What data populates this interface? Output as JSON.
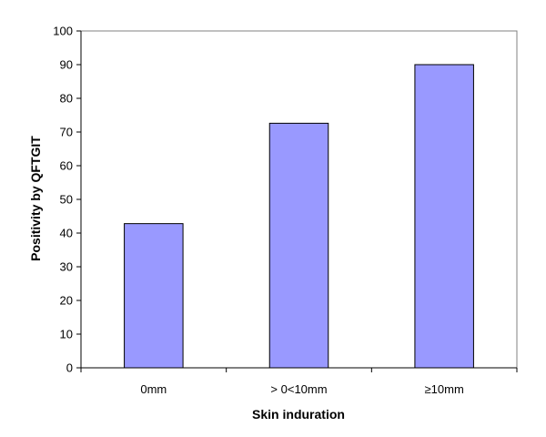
{
  "chart_data": {
    "type": "bar",
    "categories": [
      "0mm",
      "> 0<10mm",
      "≥10mm"
    ],
    "values": [
      42.8,
      72.6,
      90.0
    ],
    "xlabel": "Skin induration",
    "ylabel": "Positivity by QFTGIT",
    "ylim": [
      0,
      100
    ],
    "yticks": [
      0,
      10,
      20,
      30,
      40,
      50,
      60,
      70,
      80,
      90,
      100
    ],
    "grid": false,
    "legend": "none",
    "bar_color": "#9999ff",
    "bar_edge_color": "#000000",
    "axis_color": "#808080"
  }
}
